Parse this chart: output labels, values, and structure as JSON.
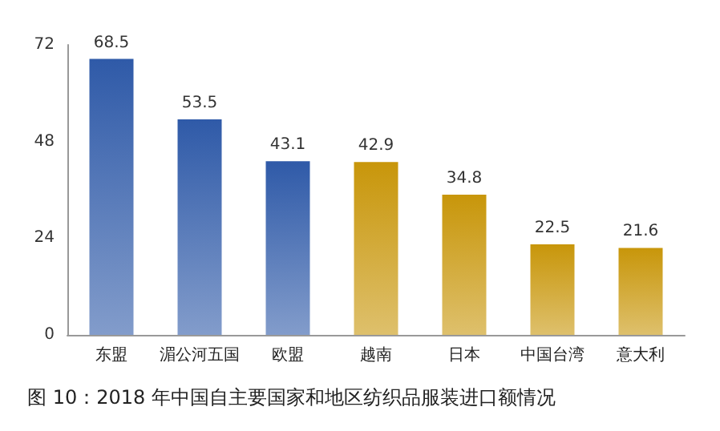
{
  "chart_data": {
    "type": "bar",
    "title": "图 10：2018 年中国自主要国家和地区纺织品服装进口额情况",
    "categories": [
      "东盟",
      "湄公河五国",
      "欧盟",
      "越南",
      "日本",
      "中国台湾",
      "意大利"
    ],
    "values": [
      68.5,
      53.5,
      43.1,
      42.9,
      34.8,
      22.5,
      21.6
    ],
    "colors": [
      "#2f5aa8",
      "#2f5aa8",
      "#2f5aa8",
      "#c8960a",
      "#c8960a",
      "#c8960a",
      "#c8960a"
    ],
    "ylim": [
      0,
      72
    ],
    "yticks": [
      0,
      24,
      48,
      72
    ],
    "grid": false,
    "data_labels": true
  }
}
